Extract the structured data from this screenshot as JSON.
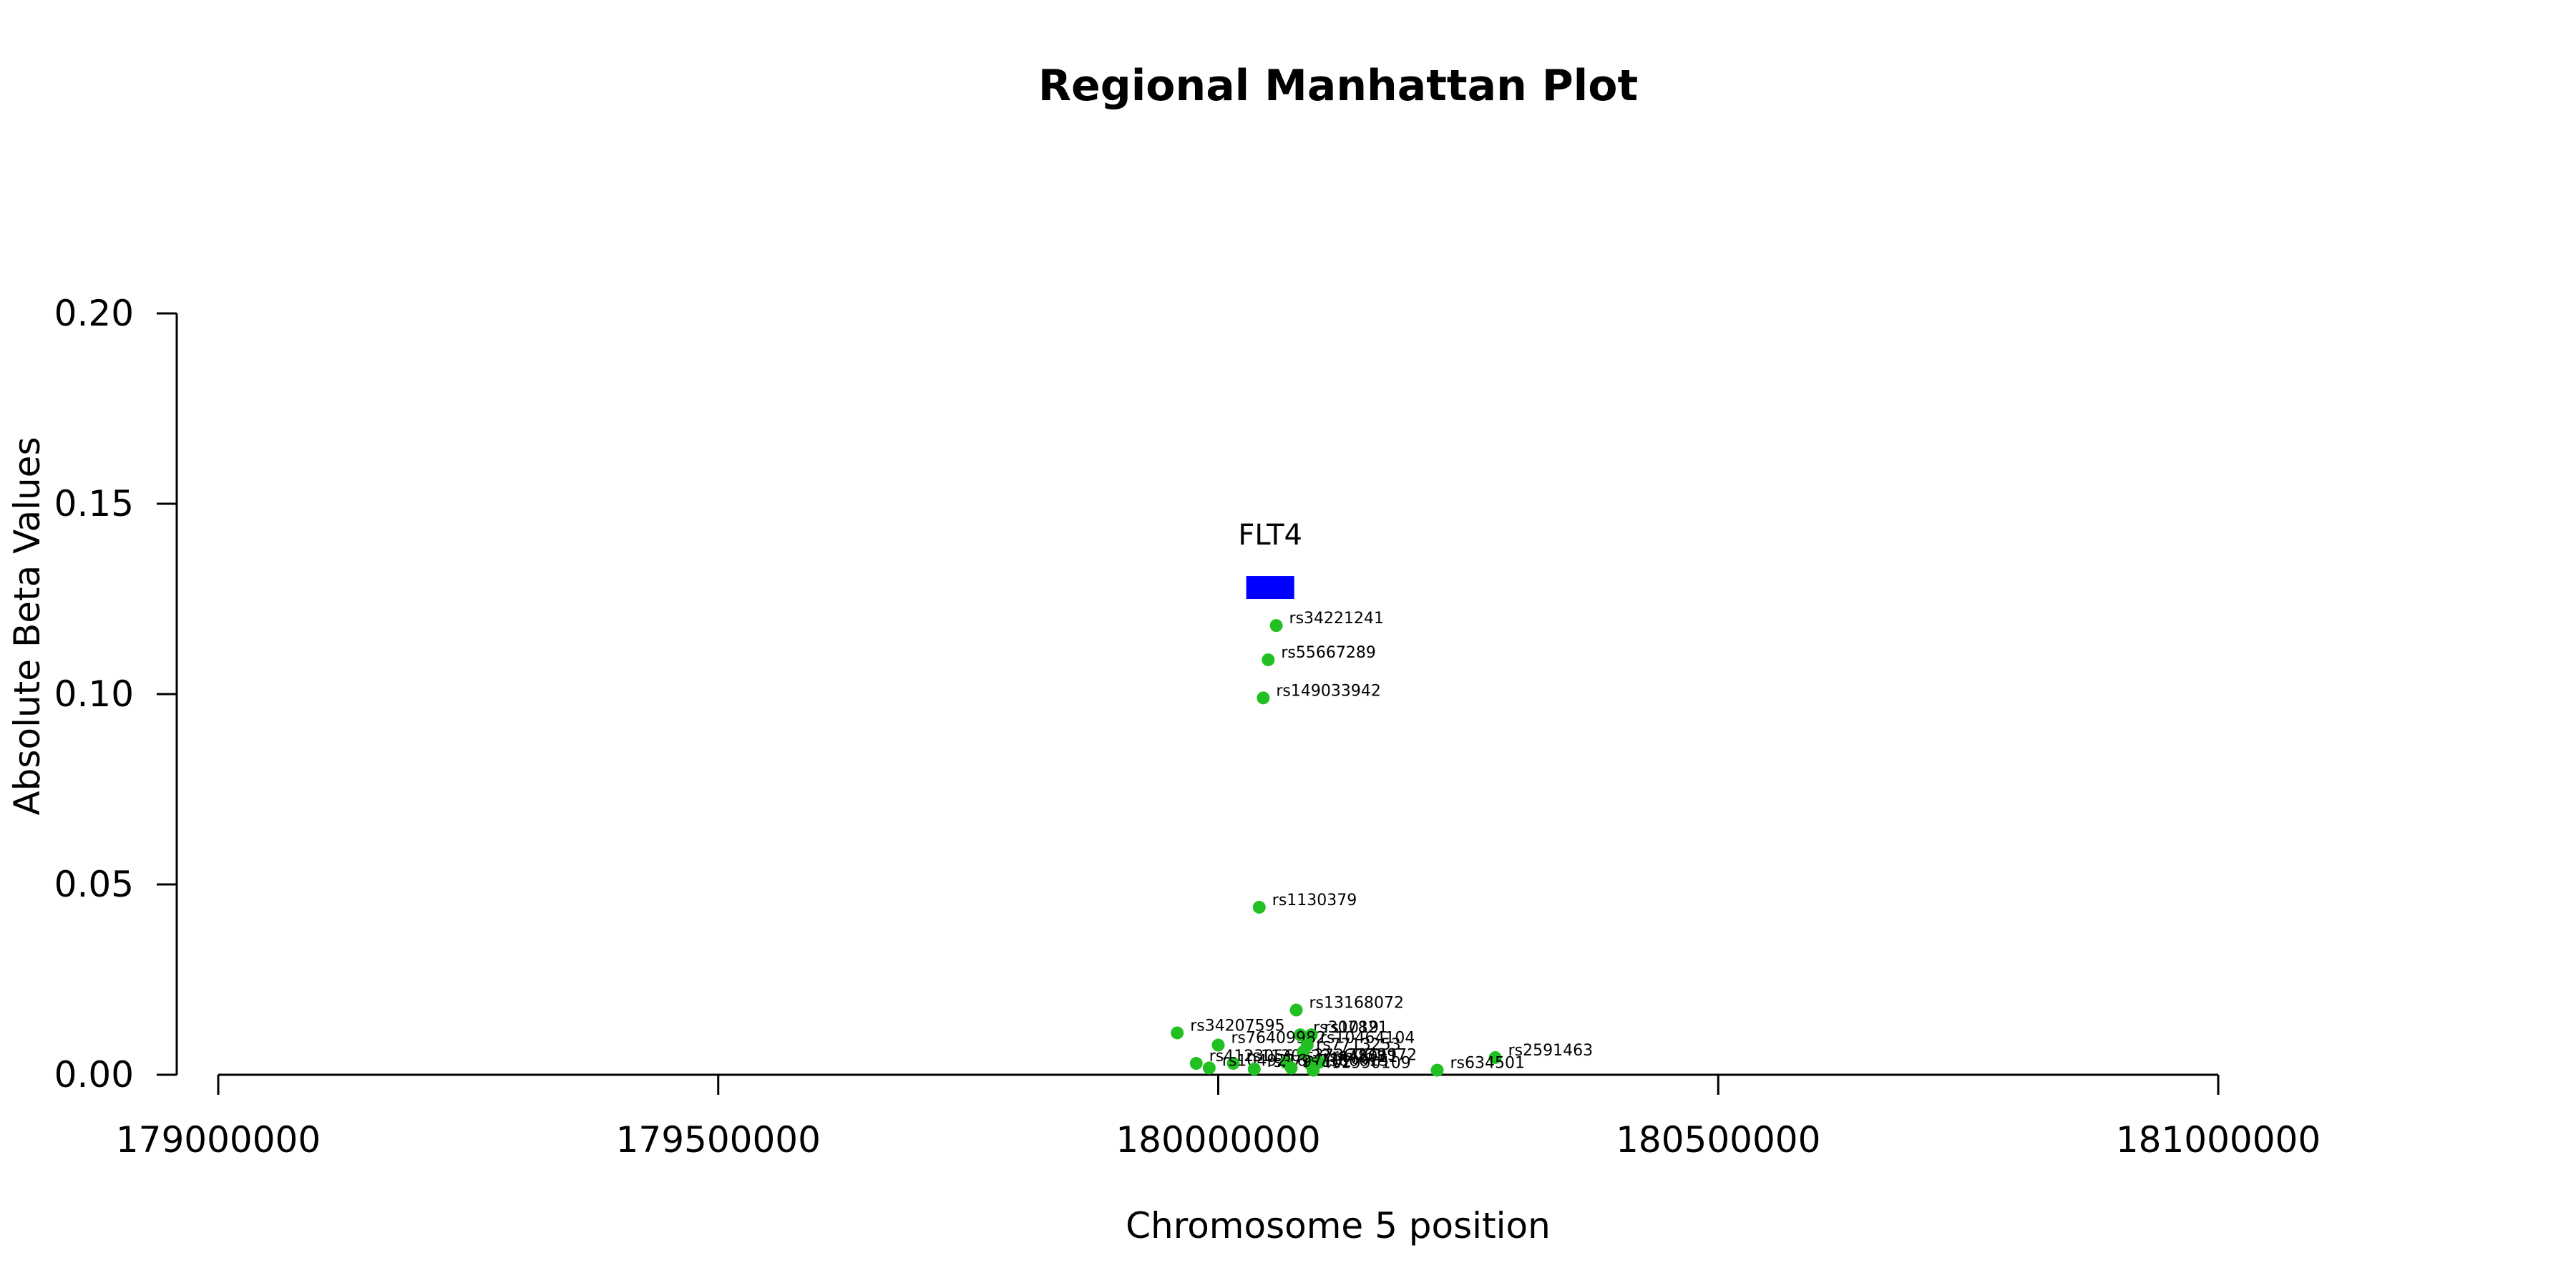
{
  "chart_data": {
    "type": "scatter",
    "title": "Regional Manhattan Plot",
    "xlabel": "Chromosome 5 position",
    "ylabel": "Absolute Beta Values",
    "xlim": [
      179000000,
      181000000
    ],
    "ylim": [
      0,
      0.2
    ],
    "x_ticks": [
      179000000,
      179500000,
      180000000,
      180500000,
      181000000
    ],
    "x_tick_labels": [
      "179000000",
      "179500000",
      "180000000",
      "180500000",
      "181000000"
    ],
    "y_ticks": [
      0,
      0.05,
      0.1,
      0.15,
      0.2
    ],
    "y_tick_labels": [
      "0.00",
      "0.05",
      "0.10",
      "0.15",
      "0.20"
    ],
    "grid": false,
    "point_color": "#22c022",
    "gene": {
      "name": "FLT4",
      "start": 180028000,
      "end": 180076000,
      "y": 0.128,
      "color": "#0000ff"
    },
    "points": [
      {
        "label": "rs34221241",
        "x": 180058000,
        "y": 0.118
      },
      {
        "label": "rs55667289",
        "x": 180050000,
        "y": 0.109
      },
      {
        "label": "rs149033942",
        "x": 180045000,
        "y": 0.099
      },
      {
        "label": "rs1130379",
        "x": 180041000,
        "y": 0.044
      },
      {
        "label": "rs13168072",
        "x": 180078000,
        "y": 0.017
      },
      {
        "label": "rs34207595",
        "x": 179959000,
        "y": 0.011
      },
      {
        "label": "rs307821",
        "x": 180082000,
        "y": 0.0105
      },
      {
        "label": "rs1019",
        "x": 180093000,
        "y": 0.0105
      },
      {
        "label": "rs76409982",
        "x": 180000000,
        "y": 0.0078
      },
      {
        "label": "rs10464104",
        "x": 180089000,
        "y": 0.0078
      },
      {
        "label": "rs2591463",
        "x": 180277000,
        "y": 0.0045
      },
      {
        "label": "rs634501",
        "x": 180219000,
        "y": 0.0012
      },
      {
        "label": "rs4123056",
        "x": 179978000,
        "y": 0.003
      },
      {
        "label": "rs1130122",
        "x": 180015000,
        "y": 0.003
      },
      {
        "label": "rs3736061",
        "x": 180068000,
        "y": 0.0032
      },
      {
        "label": "rs448011",
        "x": 180092000,
        "y": 0.0028
      },
      {
        "label": "rs2279972",
        "x": 180101000,
        "y": 0.0033
      },
      {
        "label": "rs7713253",
        "x": 180085000,
        "y": 0.006
      },
      {
        "label": "rs1049216",
        "x": 179991000,
        "y": 0.0018
      },
      {
        "label": "rs3797102",
        "x": 180036000,
        "y": 0.0015
      },
      {
        "label": "rs7380015",
        "x": 180073000,
        "y": 0.0018
      },
      {
        "label": "rs1990109",
        "x": 180095000,
        "y": 0.0012
      }
    ]
  }
}
